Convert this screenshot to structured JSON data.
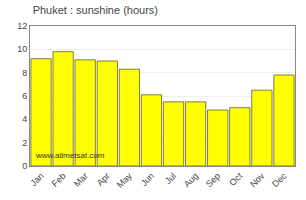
{
  "chart_data": {
    "type": "bar",
    "title": "Phuket : sunshine (hours)",
    "categories": [
      "Jan",
      "Feb",
      "Mar",
      "Apr",
      "May",
      "Jun",
      "Jul",
      "Aug",
      "Sep",
      "Oct",
      "Nov",
      "Dec"
    ],
    "values": [
      9.2,
      9.8,
      9.1,
      9.0,
      8.3,
      6.1,
      5.5,
      5.5,
      4.8,
      5.0,
      6.5,
      7.8
    ],
    "color": "#FFFF00",
    "ylim": [
      0,
      12
    ],
    "yticks": [
      0,
      2,
      4,
      6,
      8,
      10,
      12
    ],
    "grid": true,
    "annotations": [
      "www.allmetsat.com"
    ]
  }
}
